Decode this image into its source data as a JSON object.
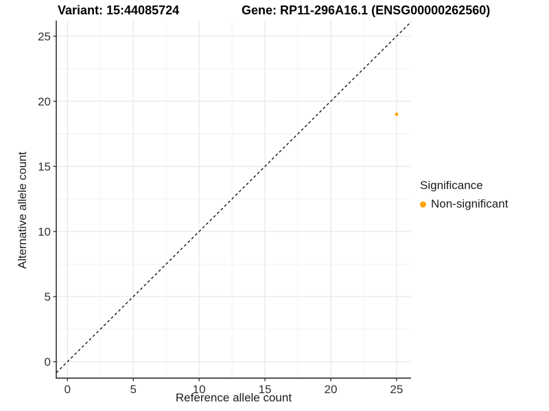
{
  "header": {
    "variant_title": "Variant: 15:44085724",
    "gene_title": "Gene: RP11-296A16.1 (ENSG00000262560)"
  },
  "chart_data": {
    "type": "scatter",
    "xlabel": "Reference allele count",
    "ylabel": "Alternative allele count",
    "x_ticks": [
      0,
      5,
      10,
      15,
      20,
      25
    ],
    "y_ticks": [
      0,
      5,
      10,
      15,
      20,
      25
    ],
    "xlim": [
      -0.85,
      26.1
    ],
    "ylim": [
      -1.26,
      26.2
    ],
    "grid": true,
    "minor_gridlines": true,
    "legend_position": "right",
    "reference_line": {
      "type": "identity",
      "style": "dashed",
      "color": "#111111"
    },
    "series": [
      {
        "name": "Non-significant",
        "color": "#FFA500",
        "points": [
          {
            "x": 25,
            "y": 19
          }
        ]
      }
    ]
  },
  "legend": {
    "title": "Significance",
    "items": [
      {
        "label": "Non-significant",
        "color": "#FFA500"
      }
    ]
  },
  "colors": {
    "background": "#FFFFFF",
    "grid_major": "#E3E3E3",
    "grid_minor": "#F1F1F1",
    "axis_line": "#3C3C3C",
    "tick": "#333333",
    "tick_label": "#303030",
    "point": "#FFA500",
    "dashed_line": "#111111"
  }
}
